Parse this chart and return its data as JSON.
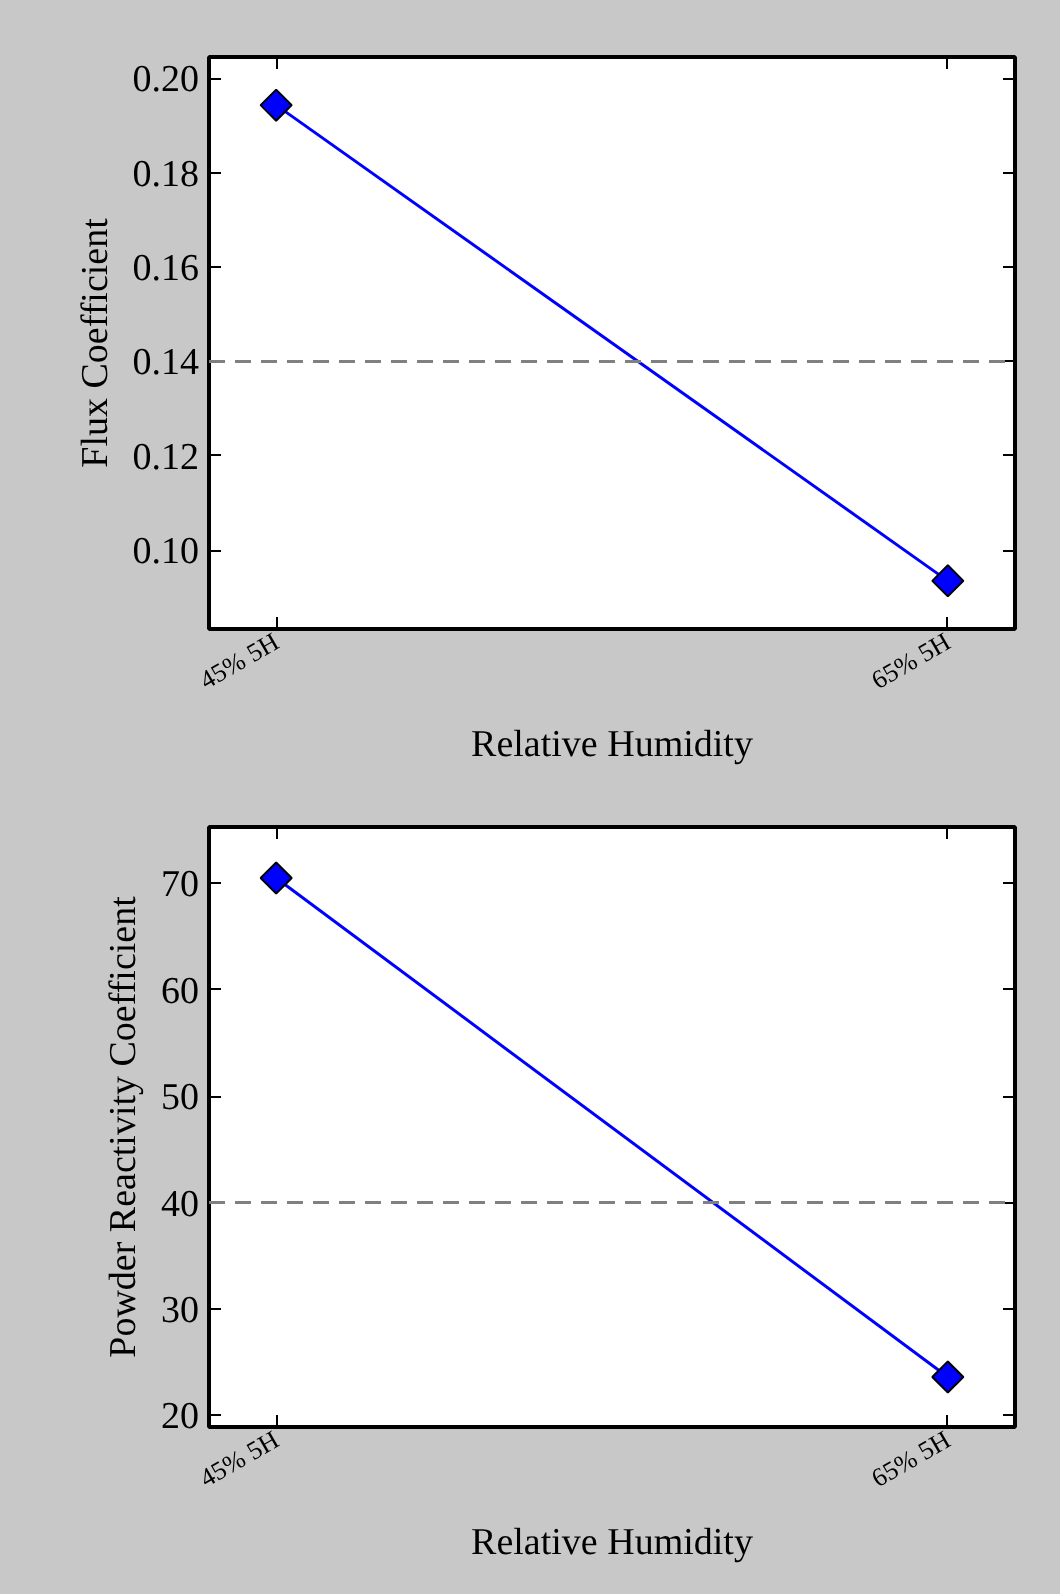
{
  "chart_data": [
    {
      "type": "line",
      "ylabel": "Flux Coefficient",
      "xlabel": "Relative Humidity",
      "categories": [
        "45% 5H",
        "65% 5H"
      ],
      "series": [
        {
          "color": "#0000ff",
          "values": [
            0.1943,
            0.0935
          ]
        }
      ],
      "ylim": [
        0.0833,
        0.2045
      ],
      "yticks": [
        {
          "value": 0.1,
          "label": "0.10"
        },
        {
          "value": 0.12,
          "label": "0.12"
        },
        {
          "value": 0.14,
          "label": "0.14"
        },
        {
          "value": 0.16,
          "label": "0.16"
        },
        {
          "value": 0.18,
          "label": "0.18"
        },
        {
          "value": 0.2,
          "label": "0.20"
        }
      ],
      "ref_lines": [
        {
          "axis": "y",
          "value": 0.14,
          "color": "#808080",
          "line_style": "dashed"
        }
      ],
      "marker": "diamond",
      "grid": false
    },
    {
      "type": "line",
      "ylabel": "Powder Reactivity Coefficient",
      "xlabel": "Relative Humidity",
      "categories": [
        "45% 5H",
        "65% 5H"
      ],
      "series": [
        {
          "color": "#0000ff",
          "values": [
            70.5,
            23.6
          ]
        }
      ],
      "ylim": [
        18.9,
        75.3
      ],
      "yticks": [
        20,
        30,
        40,
        50,
        60,
        70
      ],
      "ref_lines": [
        {
          "axis": "y",
          "value": 40,
          "color": "#808080",
          "line_style": "dashed"
        }
      ],
      "marker": "diamond",
      "grid": false
    }
  ]
}
